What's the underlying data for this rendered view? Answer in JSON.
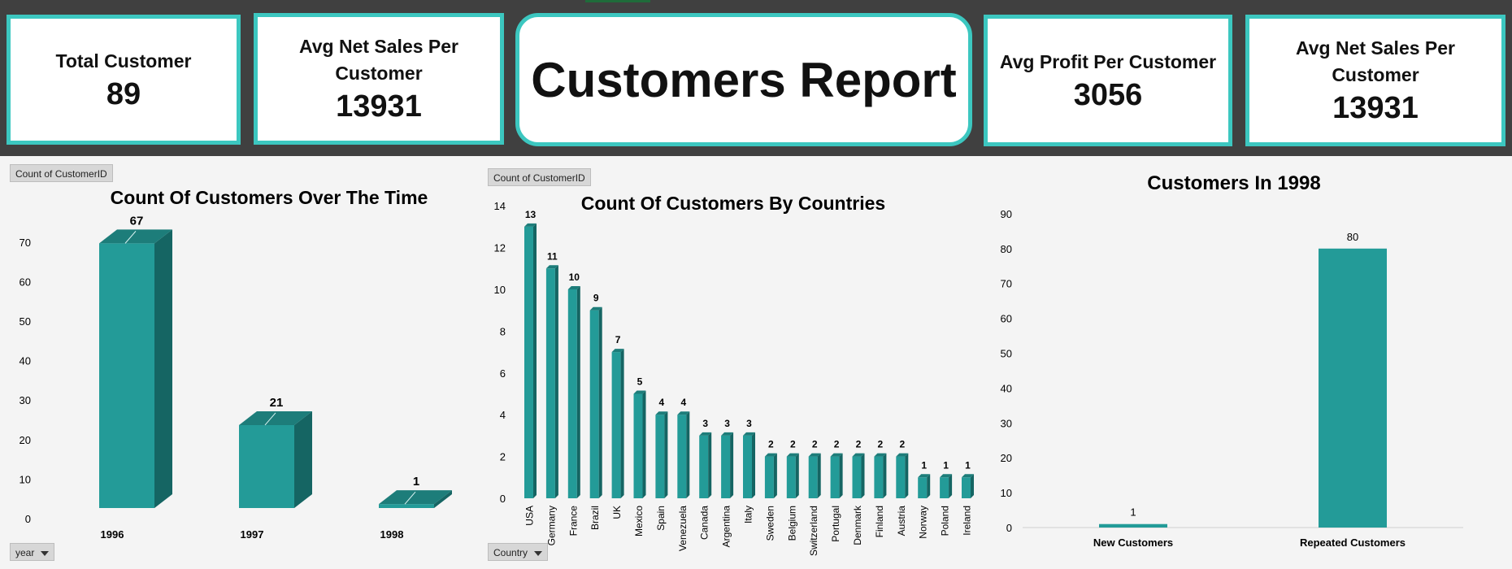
{
  "header": {
    "title": "Customers Report",
    "kpis": [
      {
        "label": "Total Customer",
        "value": "89"
      },
      {
        "label": "Avg Net Sales Per Customer",
        "value": "13931"
      },
      {
        "label": "Avg Profit Per Customer",
        "value": "3056"
      },
      {
        "label": "Avg Net Sales Per Customer",
        "value": "13931"
      }
    ]
  },
  "colors": {
    "accent": "#3cc7c0",
    "bar": "#239b98",
    "bar_side": "#156563",
    "bar_top": "#1d7d7a",
    "header_bg": "#404040"
  },
  "pivot_buttons": {
    "chart1_value": "Count of CustomerID",
    "chart1_axis": "year",
    "chart2_value": "Count of CustomerID",
    "chart2_axis": "Country"
  },
  "chart_data": [
    {
      "type": "bar",
      "title": "Count Of Customers Over The Time",
      "categories": [
        "1996",
        "1997",
        "1998"
      ],
      "values": [
        67,
        21,
        1
      ],
      "yticks": [
        0,
        10,
        20,
        30,
        40,
        50,
        60,
        70
      ],
      "ylim": [
        0,
        75
      ],
      "style": "3d",
      "grid": false,
      "legend": "none"
    },
    {
      "type": "bar",
      "title": "Count Of Customers By Countries",
      "categories": [
        "USA",
        "Germany",
        "France",
        "Brazil",
        "UK",
        "Mexico",
        "Spain",
        "Venezuela",
        "Canada",
        "Argentina",
        "Italy",
        "Sweden",
        "Belgium",
        "Switzerland",
        "Portugal",
        "Denmark",
        "Finland",
        "Austria",
        "Norway",
        "Poland",
        "Ireland"
      ],
      "values": [
        13,
        11,
        10,
        9,
        7,
        5,
        4,
        4,
        3,
        3,
        3,
        2,
        2,
        2,
        2,
        2,
        2,
        2,
        1,
        1,
        1
      ],
      "yticks": [
        0,
        2,
        4,
        6,
        8,
        10,
        12,
        14
      ],
      "ylim": [
        0,
        14
      ],
      "style": "3d",
      "grid": false,
      "legend": "none"
    },
    {
      "type": "bar",
      "title": "Customers In 1998",
      "categories": [
        "New Customers",
        "Repeated Customers"
      ],
      "values": [
        1,
        80
      ],
      "yticks": [
        0,
        10,
        20,
        30,
        40,
        50,
        60,
        70,
        80,
        90
      ],
      "ylim": [
        0,
        90
      ],
      "style": "flat",
      "grid": false,
      "legend": "none"
    }
  ]
}
